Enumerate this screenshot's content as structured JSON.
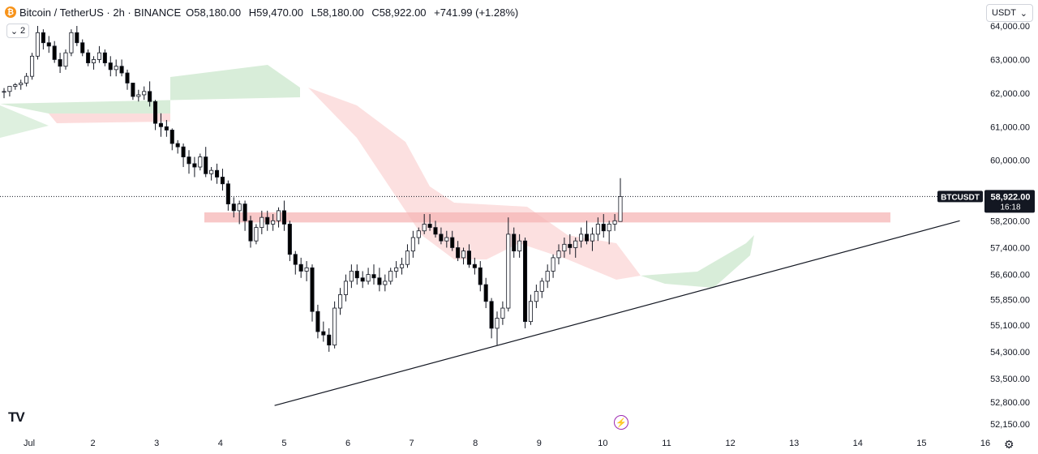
{
  "header": {
    "symbol": "Bitcoin / TetherUS · 2h · BINANCE",
    "open": "O58,180.00",
    "high": "H59,470.00",
    "low": "L58,180.00",
    "close": "C58,922.00",
    "change": "+741.99 (+1.28%)",
    "indicator_count": "2",
    "currency": "USDT"
  },
  "price_label": {
    "ticker": "BTCUSDT",
    "price": "58,922.00",
    "countdown": "16:18"
  },
  "colors": {
    "up": "#ffffff",
    "down": "#000000",
    "resistance_zone": "#f5b6b6",
    "cloud_bull": "#c8e6c9",
    "cloud_bear": "#fbd3d3",
    "trendline": "#131722",
    "event": "#9c27b0"
  },
  "icons": [
    "btc-logo",
    "chevron-down-icon",
    "tradingview-logo",
    "lightning-icon",
    "settings-icon"
  ],
  "chart_data": {
    "type": "candlestick",
    "interval": "2h",
    "y_axis": {
      "min": 52000,
      "max": 64200,
      "ticks": [
        "64,000.00",
        "63,000.00",
        "62,000.00",
        "61,000.00",
        "60,000.00",
        "58,200.00",
        "57,400.00",
        "56,600.00",
        "55,850.00",
        "55,100.00",
        "54,300.00",
        "53,500.00",
        "52,800.00",
        "52,150.00"
      ]
    },
    "x_axis": {
      "ticks": [
        "Jul",
        "2",
        "3",
        "4",
        "5",
        "6",
        "7",
        "8",
        "9",
        "10",
        "11",
        "12",
        "13",
        "14",
        "15",
        "16"
      ]
    },
    "current_price": 58922,
    "resistance_zone": [
      58150,
      58450
    ],
    "trendline": {
      "from": {
        "x": 3.85,
        "y": 52700
      },
      "to": {
        "x": 14.6,
        "y": 58200
      }
    },
    "candles": [
      [
        62050,
        62150,
        61850,
        62050
      ],
      [
        62050,
        62200,
        61900,
        62200
      ],
      [
        62200,
        62300,
        62100,
        62250
      ],
      [
        62250,
        62400,
        62100,
        62300
      ],
      [
        62300,
        62600,
        62200,
        62500
      ],
      [
        62500,
        63200,
        62400,
        63100
      ],
      [
        63100,
        64000,
        63000,
        63800
      ],
      [
        63800,
        63900,
        63300,
        63500
      ],
      [
        63500,
        63700,
        63200,
        63400
      ],
      [
        63400,
        63550,
        62900,
        63000
      ],
      [
        63000,
        63200,
        62600,
        62800
      ],
      [
        62800,
        63300,
        62700,
        63200
      ],
      [
        63200,
        63900,
        63100,
        63800
      ],
      [
        63800,
        64000,
        63400,
        63500
      ],
      [
        63500,
        63600,
        63100,
        63200
      ],
      [
        63200,
        63300,
        62800,
        62900
      ],
      [
        62900,
        63100,
        62700,
        63000
      ],
      [
        63000,
        63400,
        62900,
        63200
      ],
      [
        63200,
        63300,
        62800,
        62900
      ],
      [
        62900,
        63100,
        62500,
        62700
      ],
      [
        62700,
        63000,
        62500,
        62800
      ],
      [
        62800,
        63000,
        62500,
        62600
      ],
      [
        62600,
        62700,
        62100,
        62300
      ],
      [
        62300,
        62300,
        61800,
        61900
      ],
      [
        61900,
        62100,
        61750,
        61950
      ],
      [
        61950,
        62200,
        61800,
        62050
      ],
      [
        62050,
        62350,
        61600,
        61750
      ],
      [
        61750,
        61800,
        60900,
        61100
      ],
      [
        61100,
        61400,
        60700,
        61000
      ],
      [
        61000,
        61200,
        60700,
        60900
      ],
      [
        60900,
        60950,
        60300,
        60500
      ],
      [
        60500,
        60600,
        60200,
        60400
      ],
      [
        60400,
        60500,
        59800,
        60100
      ],
      [
        60100,
        60300,
        59600,
        59900
      ],
      [
        59900,
        60100,
        59500,
        59800
      ],
      [
        59800,
        60200,
        59700,
        60100
      ],
      [
        60100,
        60400,
        59500,
        59600
      ],
      [
        59600,
        59800,
        59400,
        59700
      ],
      [
        59700,
        59900,
        59300,
        59500
      ],
      [
        59500,
        59750,
        59100,
        59300
      ],
      [
        59300,
        59400,
        58500,
        58700
      ],
      [
        58700,
        58900,
        58300,
        58500
      ],
      [
        58500,
        58800,
        58100,
        58700
      ],
      [
        58700,
        58800,
        57900,
        58200
      ],
      [
        58200,
        58350,
        57400,
        57600
      ],
      [
        57600,
        58100,
        57500,
        58000
      ],
      [
        58000,
        58500,
        57800,
        58300
      ],
      [
        58300,
        58500,
        57900,
        58100
      ],
      [
        58100,
        58400,
        57900,
        58200
      ],
      [
        58200,
        58600,
        58000,
        58500
      ],
      [
        58500,
        58800,
        57900,
        58100
      ],
      [
        58100,
        58200,
        57000,
        57200
      ],
      [
        57200,
        57300,
        56600,
        56900
      ],
      [
        56900,
        57100,
        56500,
        56700
      ],
      [
        56700,
        57000,
        56400,
        56800
      ],
      [
        56800,
        56900,
        55200,
        55500
      ],
      [
        55500,
        55700,
        54700,
        54900
      ],
      [
        54900,
        55200,
        54600,
        54800
      ],
      [
        54800,
        55000,
        54300,
        54500
      ],
      [
        54500,
        55800,
        54400,
        55600
      ],
      [
        55600,
        56200,
        55400,
        56000
      ],
      [
        56000,
        56600,
        55800,
        56400
      ],
      [
        56400,
        56900,
        56200,
        56700
      ],
      [
        56700,
        56900,
        56300,
        56500
      ],
      [
        56500,
        56700,
        56200,
        56400
      ],
      [
        56400,
        56800,
        56300,
        56600
      ],
      [
        56600,
        56900,
        56300,
        56500
      ],
      [
        56500,
        56800,
        56100,
        56300
      ],
      [
        56300,
        56600,
        56100,
        56400
      ],
      [
        56400,
        56800,
        56300,
        56700
      ],
      [
        56700,
        57000,
        56500,
        56800
      ],
      [
        56800,
        57100,
        56600,
        56900
      ],
      [
        56900,
        57500,
        56800,
        57300
      ],
      [
        57300,
        57900,
        57100,
        57700
      ],
      [
        57700,
        58000,
        57500,
        57900
      ],
      [
        57900,
        58400,
        57800,
        58100
      ],
      [
        58100,
        58400,
        57900,
        58000
      ],
      [
        58000,
        58200,
        57700,
        57800
      ],
      [
        57800,
        58000,
        57500,
        57600
      ],
      [
        57600,
        57900,
        57400,
        57700
      ],
      [
        57700,
        57900,
        57300,
        57400
      ],
      [
        57400,
        57600,
        57000,
        57100
      ],
      [
        57100,
        57400,
        56900,
        57300
      ],
      [
        57300,
        57500,
        56800,
        56900
      ],
      [
        56900,
        57100,
        56600,
        56800
      ],
      [
        56800,
        57000,
        56100,
        56300
      ],
      [
        56300,
        56500,
        55600,
        55800
      ],
      [
        55800,
        55900,
        54700,
        55000
      ],
      [
        55000,
        55500,
        54500,
        55300
      ],
      [
        55300,
        55800,
        55100,
        55600
      ],
      [
        55600,
        58300,
        55500,
        57800
      ],
      [
        57800,
        58000,
        57100,
        57300
      ],
      [
        57300,
        57800,
        57100,
        57600
      ],
      [
        57600,
        57700,
        55000,
        55200
      ],
      [
        55200,
        56000,
        55100,
        55800
      ],
      [
        55800,
        56300,
        55600,
        56100
      ],
      [
        56100,
        56500,
        55900,
        56400
      ],
      [
        56400,
        56900,
        56200,
        56700
      ],
      [
        56700,
        57200,
        56500,
        57100
      ],
      [
        57100,
        57500,
        56900,
        57300
      ],
      [
        57300,
        57700,
        57100,
        57500
      ],
      [
        57500,
        57800,
        57200,
        57400
      ],
      [
        57400,
        57700,
        57100,
        57600
      ],
      [
        57600,
        58000,
        57400,
        57800
      ],
      [
        57800,
        58200,
        57500,
        57600
      ],
      [
        57600,
        58000,
        57300,
        57800
      ],
      [
        57800,
        58300,
        57600,
        58100
      ],
      [
        58100,
        58400,
        57700,
        57900
      ],
      [
        57900,
        58200,
        57500,
        58100
      ],
      [
        58100,
        58400,
        57900,
        58200
      ],
      [
        58180,
        59470,
        58180,
        58922
      ]
    ]
  }
}
